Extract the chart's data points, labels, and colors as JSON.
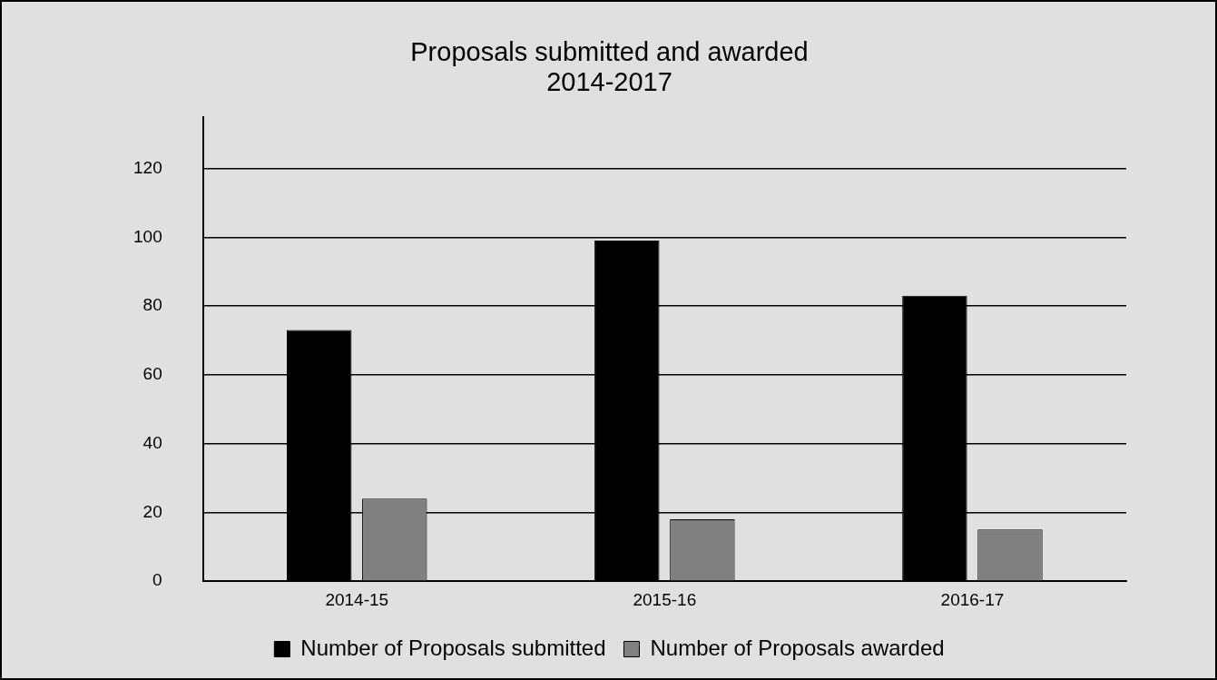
{
  "chart_data": {
    "type": "bar",
    "title": "Proposals submitted and awarded\n2014-2017",
    "categories": [
      "2014-15",
      "2015-16",
      "2016-17"
    ],
    "series": [
      {
        "name": "Number of Proposals submitted",
        "color": "#000000",
        "values": [
          73,
          99,
          83
        ]
      },
      {
        "name": "Number of Proposals awarded",
        "color": "#808080",
        "values": [
          24,
          18,
          15
        ]
      }
    ],
    "ylim": [
      0,
      135
    ],
    "yticks": [
      0,
      20,
      40,
      60,
      80,
      100,
      120
    ],
    "grid": "y",
    "legend": "bottom"
  }
}
